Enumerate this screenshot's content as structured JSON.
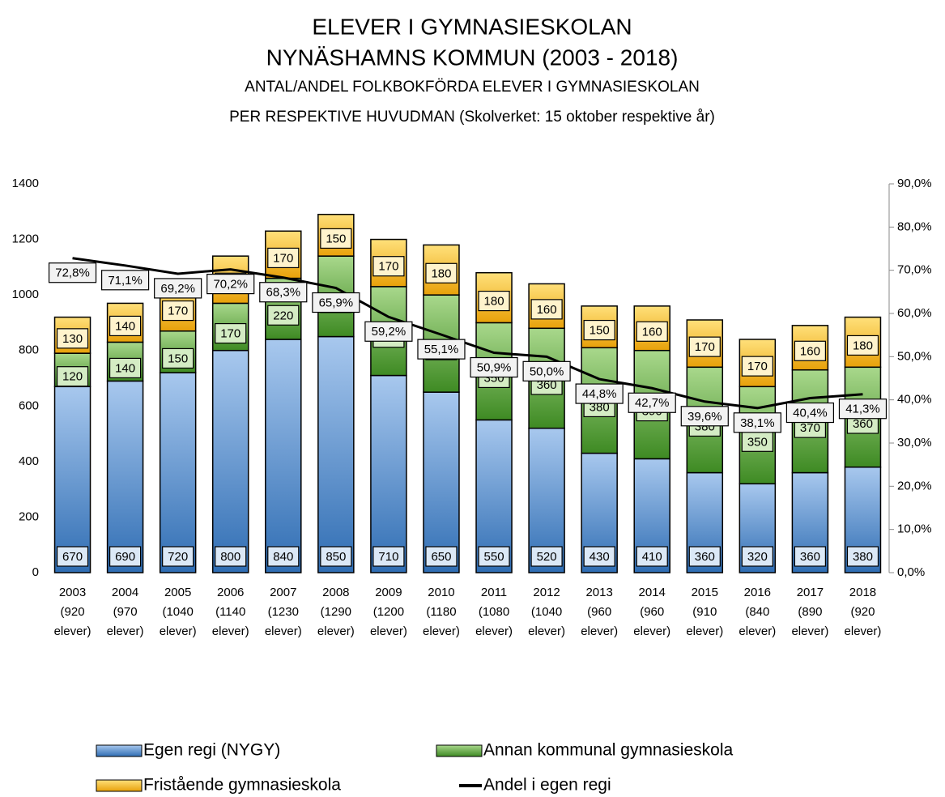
{
  "chart_data": {
    "type": "bar",
    "title": [
      "ELEVER I GYMNASIESKOLAN",
      "NYNÄSHAMNS KOMMUN (2003 - 2018)"
    ],
    "subtitle": [
      "ANTAL/ANDEL FOLKBOKFÖRDA ELEVER I GYMNASIESKOLAN",
      "PER RESPEKTIVE HUVUDMAN (Skolverket: 15 oktober respektive år)"
    ],
    "categories": [
      "2003 (920 elever)",
      "2004 (970 elever)",
      "2005 (1040 elever)",
      "2006 (1140 elever)",
      "2007 (1230 elever)",
      "2008 (1290 elever)",
      "2009 (1200 elever)",
      "2010 (1180 elever)",
      "2011 (1080 elever)",
      "2012 (1040 elever)",
      "2013 (960 elever)",
      "2014 (960 elever)",
      "2015 (910 elever)",
      "2016 (840 elever)",
      "2017 (890 elever)",
      "2018 (920 elever)"
    ],
    "series": [
      {
        "name": "Egen regi (NYGY)",
        "color": "#4a86c8",
        "stacked": true,
        "values": [
          670,
          690,
          720,
          800,
          840,
          850,
          710,
          650,
          550,
          520,
          430,
          410,
          360,
          320,
          360,
          380
        ]
      },
      {
        "name": "Annan kommunal gymnasieskola",
        "color": "#5fa63a",
        "stacked": true,
        "values": [
          120,
          140,
          150,
          170,
          220,
          290,
          320,
          350,
          350,
          360,
          380,
          390,
          380,
          350,
          370,
          360
        ]
      },
      {
        "name": "Fristående gymnasieskola",
        "color": "#f2b518",
        "stacked": true,
        "values": [
          130,
          140,
          170,
          170,
          170,
          150,
          170,
          180,
          180,
          160,
          150,
          160,
          170,
          170,
          160,
          180
        ]
      },
      {
        "name": "Andel i egen regi",
        "color": "#000000",
        "type": "line",
        "axis": "y2",
        "values": [
          72.8,
          71.1,
          69.2,
          70.2,
          68.3,
          65.9,
          59.2,
          55.1,
          50.9,
          50.0,
          44.8,
          42.7,
          39.6,
          38.1,
          40.4,
          41.3
        ],
        "value_labels": [
          "72,8%",
          "71,1%",
          "69,2%",
          "70,2%",
          "68,3%",
          "65,9%",
          "59,2%",
          "55,1%",
          "50,9%",
          "50,0%",
          "44,8%",
          "42,7%",
          "39,6%",
          "38,1%",
          "40,4%",
          "41,3%"
        ]
      }
    ],
    "ylim": [
      0,
      1400
    ],
    "yticks": [
      0,
      200,
      400,
      600,
      800,
      1000,
      1200,
      1400
    ],
    "y2lim": [
      0,
      90
    ],
    "y2ticks": [
      {
        "value": 0,
        "label": "0,0%"
      },
      {
        "value": 10,
        "label": "10,0%"
      },
      {
        "value": 20,
        "label": "20,0%"
      },
      {
        "value": 30,
        "label": "30,0%"
      },
      {
        "value": 40,
        "label": "40,0%"
      },
      {
        "value": 50,
        "label": "50,0%"
      },
      {
        "value": 60,
        "label": "60,0%"
      },
      {
        "value": 70,
        "label": "70,0%"
      },
      {
        "value": 80,
        "label": "80,0%"
      },
      {
        "value": 90,
        "label": "90,0%"
      }
    ],
    "grid": false,
    "legend": "bottom"
  }
}
